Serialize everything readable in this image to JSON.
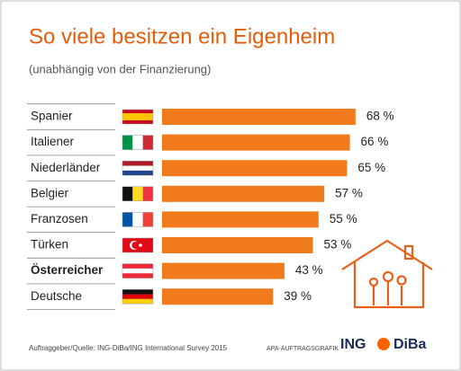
{
  "chart_data": {
    "type": "bar",
    "orientation": "horizontal",
    "title": "So viele besitzen ein Eigenheim",
    "subtitle": "(unabhängig von der Finanzierung)",
    "categories": [
      "Spanier",
      "Italiener",
      "Niederländer",
      "Belgier",
      "Franzosen",
      "Türken",
      "Österreicher",
      "Deutsche"
    ],
    "values": [
      68,
      66,
      65,
      57,
      55,
      53,
      43,
      39
    ],
    "value_labels": [
      "68 %",
      "66 %",
      "65 %",
      "57 %",
      "55 %",
      "53 %",
      "43 %",
      "39 %"
    ],
    "color": "#f07a1c",
    "highlight_index": 6,
    "source": "Auftraggeber/Quelle: ING-DiBa/ING International Survey 2015",
    "credit": "APA-AUFTRAGSGRAFIK",
    "logo": [
      "ING",
      "DiBa"
    ]
  }
}
